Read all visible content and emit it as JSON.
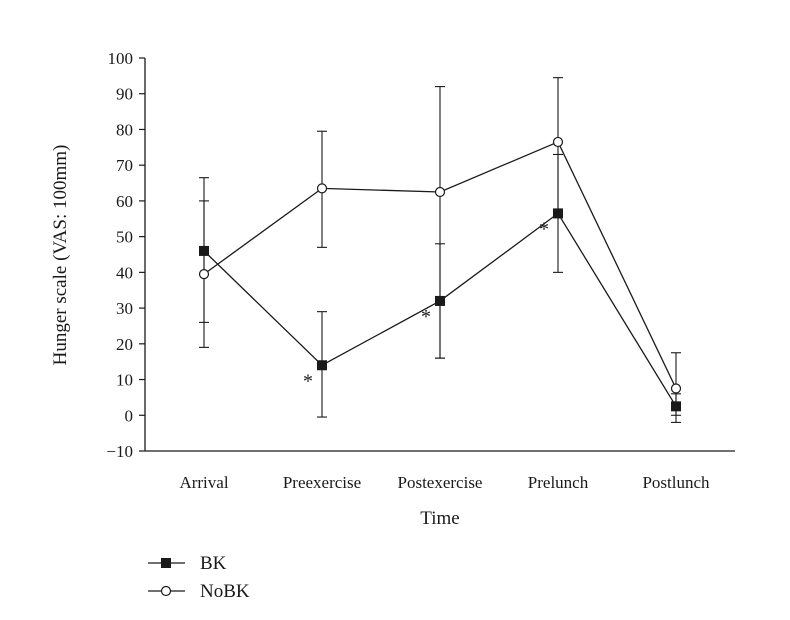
{
  "chart_data": {
    "type": "line",
    "title": "",
    "xlabel": "Time",
    "ylabel": "Hunger scale (VAS: 100mm)",
    "categories": [
      "Arrival",
      "Preexercise",
      "Postexercise",
      "Prelunch",
      "Postlunch"
    ],
    "ylim": [
      -10,
      100
    ],
    "yticks": [
      -10,
      0,
      10,
      20,
      30,
      40,
      50,
      60,
      70,
      80,
      90,
      100
    ],
    "ytick_labels": [
      "−10",
      "0",
      "10",
      "20",
      "30",
      "40",
      "50",
      "60",
      "70",
      "80",
      "90",
      "100"
    ],
    "grid": false,
    "legend_position": "bottom-left",
    "series": [
      {
        "name": "BK",
        "marker": "filled-square",
        "color": "#1a1a1a",
        "values": [
          46,
          14,
          32,
          56.5,
          2.5
        ],
        "error_low": [
          26,
          -0.5,
          16,
          40,
          -2
        ],
        "error_high": [
          60,
          29,
          48,
          73,
          6
        ]
      },
      {
        "name": "NoBK",
        "marker": "open-circle",
        "color": "#1a1a1a",
        "values": [
          39.5,
          63.5,
          62.5,
          76.5,
          7.5
        ],
        "error_low": [
          19,
          47,
          16,
          56,
          0
        ],
        "error_high": [
          66.5,
          79.5,
          92,
          94.5,
          17.5
        ]
      }
    ],
    "annotations": [
      {
        "text": "*",
        "category_index": 1
      },
      {
        "text": "*",
        "category_index": 2
      },
      {
        "text": "*",
        "category_index": 3
      }
    ]
  }
}
